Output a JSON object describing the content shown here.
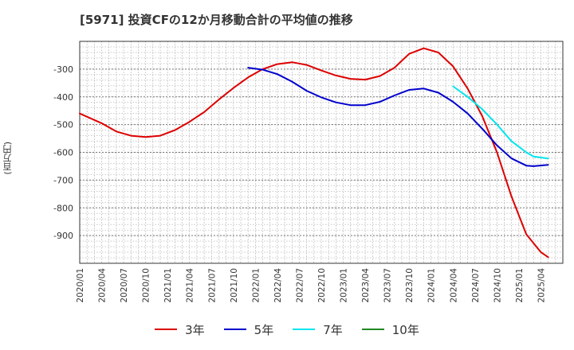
{
  "title": "[5971]  投資CFの12か月移動合計の平均値の推移",
  "chart_data": {
    "type": "line",
    "ylabel": "(百万円)",
    "ylim": [
      -1000,
      -200
    ],
    "yticks": [
      -300,
      -400,
      -500,
      -600,
      -700,
      -800,
      -900
    ],
    "xticks": [
      "2020/01",
      "2020/04",
      "2020/07",
      "2020/10",
      "2021/01",
      "2021/04",
      "2021/07",
      "2021/10",
      "2022/01",
      "2022/04",
      "2022/07",
      "2022/10",
      "2023/01",
      "2023/04",
      "2023/07",
      "2023/10",
      "2024/01",
      "2024/04",
      "2024/07",
      "2024/10",
      "2025/01",
      "2025/04"
    ],
    "grid": true,
    "legend_position": "bottom",
    "series": [
      {
        "name": "3年",
        "color": "#dd0000",
        "points": [
          [
            "2020/01",
            -460
          ],
          [
            "2020/04",
            -495
          ],
          [
            "2020/06",
            -525
          ],
          [
            "2020/08",
            -540
          ],
          [
            "2020/10",
            -545
          ],
          [
            "2020/12",
            -540
          ],
          [
            "2021/02",
            -520
          ],
          [
            "2021/04",
            -490
          ],
          [
            "2021/06",
            -455
          ],
          [
            "2021/08",
            -410
          ],
          [
            "2021/10",
            -368
          ],
          [
            "2021/12",
            -330
          ],
          [
            "2022/02",
            -300
          ],
          [
            "2022/04",
            -282
          ],
          [
            "2022/06",
            -275
          ],
          [
            "2022/08",
            -285
          ],
          [
            "2022/10",
            -305
          ],
          [
            "2022/12",
            -323
          ],
          [
            "2023/02",
            -335
          ],
          [
            "2023/04",
            -338
          ],
          [
            "2023/06",
            -325
          ],
          [
            "2023/08",
            -295
          ],
          [
            "2023/10",
            -245
          ],
          [
            "2023/12",
            -225
          ],
          [
            "2024/02",
            -240
          ],
          [
            "2024/04",
            -290
          ],
          [
            "2024/06",
            -370
          ],
          [
            "2024/08",
            -470
          ],
          [
            "2024/10",
            -600
          ],
          [
            "2024/12",
            -760
          ],
          [
            "2025/02",
            -895
          ],
          [
            "2025/04",
            -960
          ],
          [
            "2025/05",
            -978
          ]
        ]
      },
      {
        "name": "5年",
        "color": "#0000cc",
        "points": [
          [
            "2021/12",
            -295
          ],
          [
            "2022/02",
            -302
          ],
          [
            "2022/04",
            -318
          ],
          [
            "2022/06",
            -345
          ],
          [
            "2022/08",
            -378
          ],
          [
            "2022/10",
            -402
          ],
          [
            "2022/12",
            -420
          ],
          [
            "2023/02",
            -430
          ],
          [
            "2023/04",
            -430
          ],
          [
            "2023/06",
            -418
          ],
          [
            "2023/08",
            -395
          ],
          [
            "2023/10",
            -375
          ],
          [
            "2023/12",
            -370
          ],
          [
            "2024/02",
            -385
          ],
          [
            "2024/04",
            -418
          ],
          [
            "2024/06",
            -460
          ],
          [
            "2024/08",
            -515
          ],
          [
            "2024/10",
            -575
          ],
          [
            "2024/12",
            -622
          ],
          [
            "2025/02",
            -648
          ],
          [
            "2025/03",
            -650
          ],
          [
            "2025/05",
            -645
          ]
        ]
      },
      {
        "name": "7年",
        "color": "#00e5ee",
        "points": [
          [
            "2024/04",
            -362
          ],
          [
            "2024/06",
            -400
          ],
          [
            "2024/08",
            -445
          ],
          [
            "2024/10",
            -500
          ],
          [
            "2024/12",
            -560
          ],
          [
            "2025/02",
            -600
          ],
          [
            "2025/03",
            -615
          ],
          [
            "2025/05",
            -622
          ]
        ]
      },
      {
        "name": "10年",
        "color": "#228822",
        "points": []
      }
    ]
  }
}
